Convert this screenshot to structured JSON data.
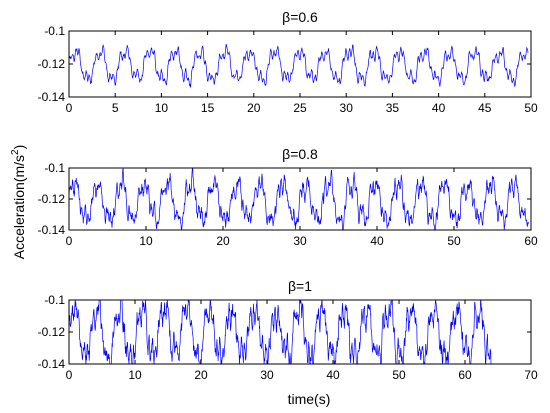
{
  "figure": {
    "ylabel": "Acceleration(m/s",
    "ylabel_sup": "2",
    "ylabel_close": ")",
    "xlabel": "time(s)"
  },
  "chart_data": [
    {
      "type": "line",
      "title": "β=0.6",
      "xlim": [
        0,
        50
      ],
      "ylim": [
        -0.14,
        -0.1
      ],
      "xticks": [
        0,
        5,
        10,
        15,
        20,
        25,
        30,
        35,
        40,
        45,
        50
      ],
      "yticks": [
        -0.1,
        -0.12,
        -0.14
      ],
      "ytick_labels": [
        "-0.1",
        "-0.12",
        "-0.14"
      ],
      "series_color": "#0000ff",
      "x_end": 49.7,
      "period": 2.7,
      "mean": -0.121,
      "amplitude": 0.0085,
      "noise": 0.0018
    },
    {
      "type": "line",
      "title": "β=0.8",
      "xlim": [
        0,
        60
      ],
      "ylim": [
        -0.14,
        -0.1
      ],
      "xticks": [
        0,
        10,
        20,
        30,
        40,
        50,
        60
      ],
      "yticks": [
        -0.1,
        -0.12,
        -0.14
      ],
      "ytick_labels": [
        "-0.1",
        "-0.12",
        "-0.14"
      ],
      "series_color": "#0000ff",
      "x_end": 59.7,
      "period": 3.0,
      "mean": -0.122,
      "amplitude": 0.012,
      "noise": 0.0045
    },
    {
      "type": "line",
      "title": "β=1",
      "xlim": [
        0,
        70
      ],
      "ylim": [
        -0.14,
        -0.1
      ],
      "xticks": [
        0,
        10,
        20,
        30,
        40,
        50,
        60,
        70
      ],
      "yticks": [
        -0.1,
        -0.12,
        -0.14
      ],
      "ytick_labels": [
        "-0.1",
        "-0.12",
        "-0.14"
      ],
      "series_color": "#0000ff",
      "x_end": 64,
      "period": 3.4,
      "mean": -0.121,
      "amplitude": 0.015,
      "noise": 0.006
    }
  ]
}
